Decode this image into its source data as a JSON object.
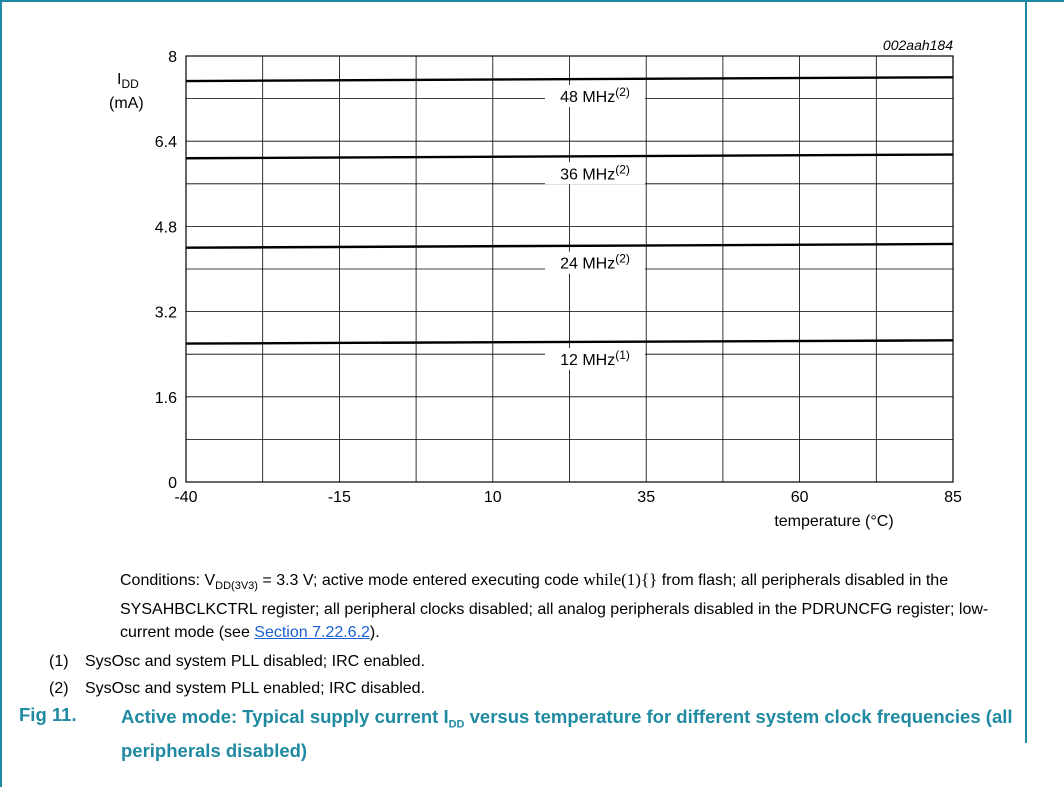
{
  "chart_data": {
    "type": "line",
    "id_code": "002aah184",
    "ylabel_main": "I",
    "ylabel_sub": "DD",
    "ylabel_unit": "(mA)",
    "xlabel": "temperature (°C)",
    "xlim": [
      -40,
      85
    ],
    "ylim": [
      0,
      8
    ],
    "x_ticks": [
      "-40",
      "-15",
      "10",
      "35",
      "60",
      "85"
    ],
    "y_ticks": [
      "0",
      "1.6",
      "3.2",
      "4.8",
      "6.4",
      "8"
    ],
    "grid": true,
    "x": [
      -40,
      85
    ],
    "series": [
      {
        "name": "48 MHz",
        "note": "(2)",
        "values": [
          7.53,
          7.6
        ]
      },
      {
        "name": "36 MHz",
        "note": "(2)",
        "values": [
          6.08,
          6.15
        ]
      },
      {
        "name": "24 MHz",
        "note": "(2)",
        "values": [
          4.4,
          4.47
        ]
      },
      {
        "name": "12 MHz",
        "note": "(1)",
        "values": [
          2.6,
          2.66
        ]
      }
    ]
  },
  "text": {
    "cond_a": "Conditions: V",
    "cond_sub": "DD(3V3)",
    "cond_b": " = 3.3 V; active mode entered executing code ",
    "cond_code": "while(1){}",
    "cond_c": " from flash; all peripherals disabled in the SYSAHBCLKCTRL register; all peripheral clocks disabled; all analog peripherals disabled in the PDRUNCFG register; low-current mode (see ",
    "cond_link": "Section 7.22.6.2",
    "cond_d": ").",
    "note1_num": "(1)",
    "note1": "SysOsc and system PLL disabled; IRC enabled.",
    "note2_num": "(2)",
    "note2": "SysOsc and system PLL enabled; IRC disabled.",
    "fig_label": "Fig 11.",
    "caption_a": "Active mode: Typical supply current I",
    "caption_sub": "DD",
    "caption_b": " versus temperature for different system clock frequencies (all peripherals disabled)"
  }
}
